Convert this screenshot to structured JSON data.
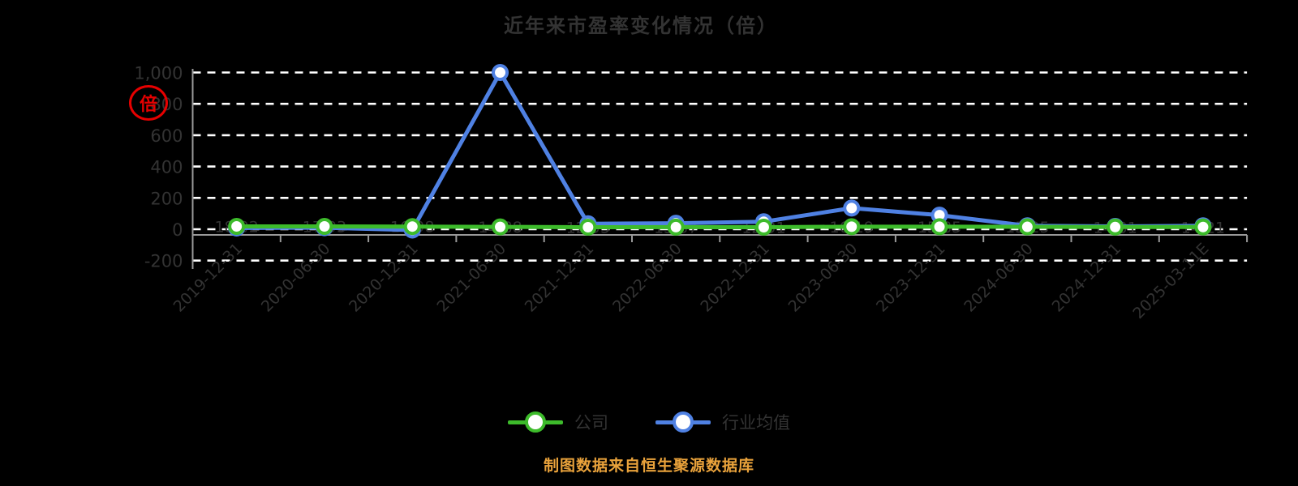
{
  "title": "近年来市盈率变化情况（倍）",
  "stamp": {
    "text": "倍",
    "color": "#e60000"
  },
  "footer": "制图数据来自恒生聚源数据库",
  "legend": [
    {
      "label": "公司",
      "color": "#3dbb2b"
    },
    {
      "label": "行业均值",
      "color": "#4f81e3"
    }
  ],
  "colors": {
    "background": "#000000",
    "text": "#333333",
    "grid": "#ffffff",
    "axis": "#999999",
    "company_line": "#3dbb2b",
    "industry_line": "#4f81e3",
    "footer_text": "#e9a23b",
    "stamp_red": "#e60000"
  },
  "chart_data": {
    "type": "line",
    "title": "近年来市盈率变化情况（倍）",
    "xlabel": "",
    "ylabel": "倍",
    "categories": [
      "2019-12-31",
      "2020-06-30",
      "2020-12-31",
      "2021-06-30",
      "2021-12-31",
      "2022-06-30",
      "2022-12-31",
      "2023-06-30",
      "2023-12-31",
      "2024-06-30",
      "2024-12-31",
      "2025-03-11E"
    ],
    "y_ticks": [
      1000,
      800,
      600,
      400,
      200,
      0,
      -200
    ],
    "y_tick_labels": [
      "1,000",
      "800",
      "600",
      "400",
      "200",
      "0",
      "-200"
    ],
    "ylim": [
      -200,
      1000
    ],
    "grid": true,
    "grid_style": "dashed-white",
    "legend_position": "bottom",
    "series": [
      {
        "name": "公司",
        "color": "#3dbb2b",
        "values": [
          18.02,
          17.93,
          16.98,
          14.88,
          12.95,
          13.37,
          12.91,
          16.19,
          15.85,
          15.25,
          14.01,
          14.21
        ],
        "point_labels": [
          "18.02",
          "17.93",
          "16.98",
          "14.88",
          "12.95",
          "13.37",
          "12.91",
          "16.19",
          "15.85",
          "15.25",
          "14.01",
          "14.21"
        ]
      },
      {
        "name": "行业均值",
        "color": "#4f81e3",
        "values": [
          8,
          10,
          -5,
          1000,
          35,
          38,
          48,
          135,
          90,
          22,
          18,
          22
        ]
      }
    ]
  }
}
